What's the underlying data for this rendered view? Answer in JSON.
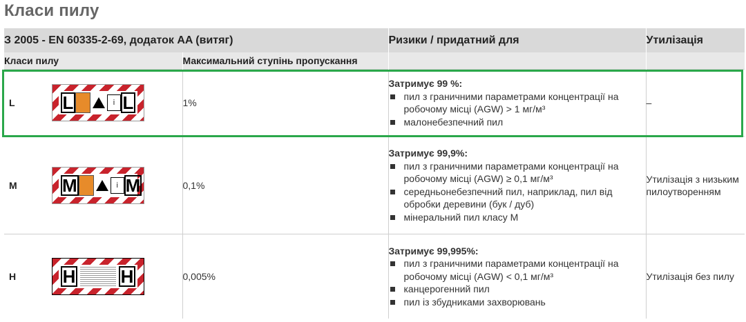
{
  "title": "Класи пилу",
  "header": {
    "col1": "З 2005 - EN 60335-2-69, додаток AA (витяг)",
    "col2": "Ризики / придатний для",
    "col3": "Утилізація",
    "sub1": "Класи пилу",
    "sub2": "Максимальний ступінь пропускання"
  },
  "rows": [
    {
      "class": "L",
      "label_letter": "L",
      "max": "1%",
      "risk_head": "Затримує 99 %:",
      "risks": [
        "пил з граничними параметрами концентрації на робочому місці (AGW) > 1 мг/м³",
        "малонебезпечний пил"
      ],
      "disposal": "–"
    },
    {
      "class": "M",
      "label_letter": "M",
      "max": "0,1%",
      "risk_head": "Затримує 99,9%:",
      "risks": [
        "пил з граничними параметрами концентрації на робочому місці (AGW) ≥ 0,1 мг/м³",
        "середньонебезпечний пил, наприклад, пил від обробки деревини (бук / дуб)",
        "мінеральний пил класу М"
      ],
      "disposal": "Утилізація з низьким пилоутворенням"
    },
    {
      "class": "H",
      "label_letter": "H",
      "max": "0,005%",
      "risk_head": "Затримує 99,995%:",
      "risks": [
        "пил з граничними параметрами концентрації на робочому місці (AGW) < 0,1 мг/м³",
        "канцерогенний пил",
        "пил із збудниками захворювань"
      ],
      "disposal": "Утилізація без пилу"
    }
  ],
  "colors": {
    "highlight": "#2aa74a",
    "stripe": "#c8232c",
    "header_bg": "#d9d9d9"
  }
}
